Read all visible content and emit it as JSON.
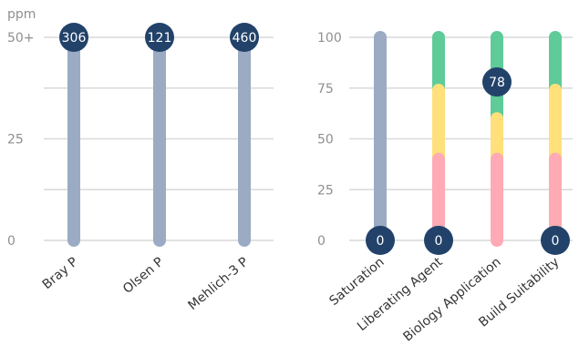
{
  "chart_data": [
    {
      "type": "bar",
      "unit_label": "ppm",
      "ylim": [
        0,
        50
      ],
      "y_ticks": [
        {
          "value": 0,
          "label": "0"
        },
        {
          "value": 25,
          "label": "25"
        },
        {
          "value": 50,
          "label": "50+"
        }
      ],
      "grid_values": [
        0,
        12.5,
        25,
        37.5,
        50
      ],
      "categories": [
        "Bray P",
        "Olsen P",
        "Mehlich-3 P"
      ],
      "values": [
        306,
        121,
        460
      ],
      "marker_labels": [
        "306",
        "121",
        "460"
      ],
      "bar_color": "#9aabc3"
    },
    {
      "type": "bar",
      "ylim": [
        0,
        100
      ],
      "y_ticks": [
        {
          "value": 0,
          "label": "0"
        },
        {
          "value": 25,
          "label": "25"
        },
        {
          "value": 50,
          "label": "50"
        },
        {
          "value": 75,
          "label": "75"
        },
        {
          "value": 100,
          "label": "100"
        }
      ],
      "grid_values": [
        0,
        25,
        50,
        75,
        100
      ],
      "categories": [
        "Saturation",
        "Liberating Agent",
        "Biology Application",
        "Build Suitability"
      ],
      "values": [
        0,
        0,
        78,
        0
      ],
      "marker_labels": [
        "0",
        "0",
        "78",
        "0"
      ],
      "bands": [
        [
          {
            "from": 0,
            "to": 100,
            "color": "#9aabc3"
          }
        ],
        [
          {
            "from": 0,
            "to": 40,
            "color": "#ffaab4"
          },
          {
            "from": 40,
            "to": 74,
            "color": "#ffe07a"
          },
          {
            "from": 74,
            "to": 100,
            "color": "#5ecb98"
          }
        ],
        [
          {
            "from": 0,
            "to": 40,
            "color": "#ffaab4"
          },
          {
            "from": 40,
            "to": 60,
            "color": "#ffe07a"
          },
          {
            "from": 60,
            "to": 100,
            "color": "#5ecb98"
          }
        ],
        [
          {
            "from": 0,
            "to": 40,
            "color": "#ffaab4"
          },
          {
            "from": 40,
            "to": 74,
            "color": "#ffe07a"
          },
          {
            "from": 74,
            "to": 100,
            "color": "#5ecb98"
          }
        ]
      ]
    }
  ],
  "colors": {
    "marker": "#22426a",
    "grid": "#d9d9d9",
    "tick_text": "#8f8f8f",
    "category_text": "#333333"
  }
}
